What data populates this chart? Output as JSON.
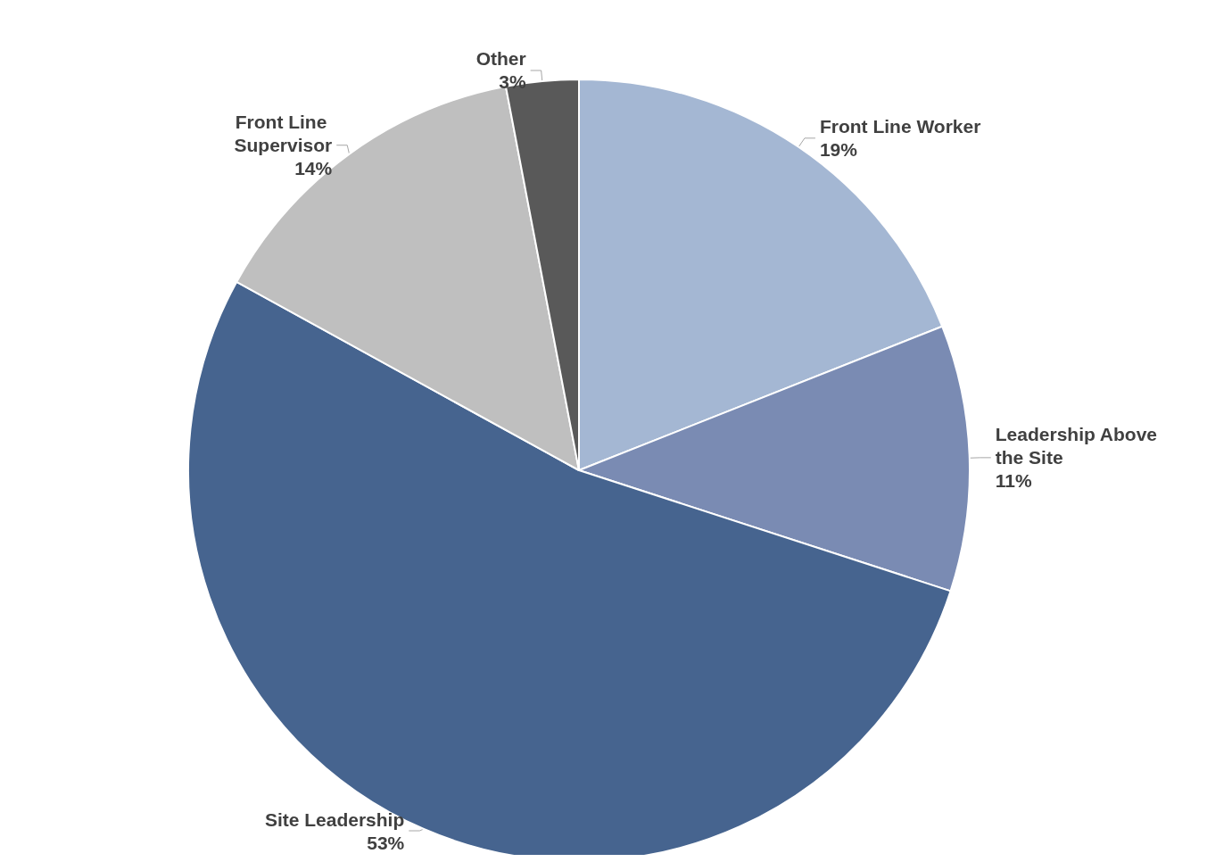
{
  "chart_data": {
    "type": "pie",
    "categories": [
      "Front Line Worker",
      "Leadership Above the Site",
      "Site Leadership",
      "Front Line Supervisor",
      "Other"
    ],
    "values": [
      19,
      11,
      53,
      14,
      3
    ],
    "value_labels": [
      "19%",
      "11%",
      "53%",
      "14%",
      "3%"
    ],
    "colors": [
      "#a4b7d3",
      "#7a8bb3",
      "#46648f",
      "#bfbfbf",
      "#595959"
    ],
    "legend": false
  }
}
